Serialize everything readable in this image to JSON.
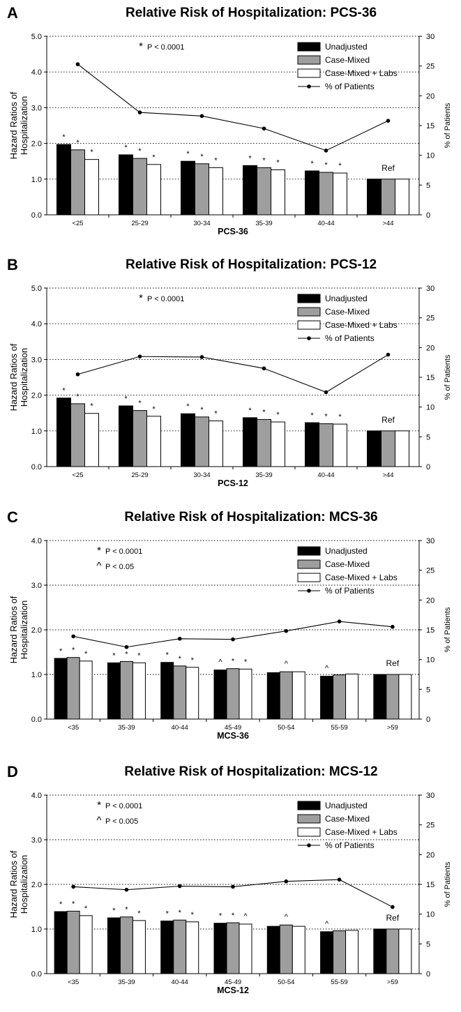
{
  "colors": {
    "unadjusted": "#000000",
    "case_mixed": "#9e9e9e",
    "case_mixed_labs": "#ffffff",
    "patients_line": "#000000"
  },
  "chart_data": [
    {
      "type": "bar",
      "panel_letter": "A",
      "title": "Relative Risk of Hospitalization: PCS-36",
      "xlabel": "PCS-36",
      "ylabel_lines": [
        "Hazard Ratios of",
        "Hospitalization"
      ],
      "y2label": "% of Patients",
      "ylim": [
        0,
        5
      ],
      "yticks": [
        "0.0",
        "1.0",
        "2.0",
        "3.0",
        "4.0",
        "5.0"
      ],
      "y2lim": [
        0,
        30
      ],
      "y2ticks": [
        "0",
        "5",
        "10",
        "15",
        "20",
        "25",
        "30"
      ],
      "grid": "dotted horizontal",
      "legend_position": "top-right",
      "categories": [
        "<25",
        "25-29",
        "30-34",
        "35-39",
        "40-44",
        ">44"
      ],
      "series": [
        {
          "name": "Unadjusted",
          "values": [
            1.97,
            1.68,
            1.5,
            1.38,
            1.23,
            1.0
          ]
        },
        {
          "name": "Case-Mixed",
          "values": [
            1.82,
            1.58,
            1.43,
            1.32,
            1.19,
            1.0
          ]
        },
        {
          "name": "Case-Mixed + Labs",
          "values": [
            1.55,
            1.41,
            1.32,
            1.26,
            1.17,
            1.0
          ]
        }
      ],
      "line_series": {
        "name": "% of Patients",
        "values": [
          25.3,
          17.2,
          16.6,
          14.5,
          10.8,
          15.8
        ]
      },
      "significance": [
        [
          "*",
          "*",
          "*"
        ],
        [
          "*",
          "*",
          "*"
        ],
        [
          "*",
          "*",
          "*"
        ],
        [
          "*",
          "*",
          "*"
        ],
        [
          "*",
          "*",
          "*"
        ],
        [
          "",
          "",
          ""
        ]
      ],
      "ref_label": "Ref",
      "notes": [
        {
          "symbol": "*",
          "text": "P < 0.0001"
        }
      ]
    },
    {
      "type": "bar",
      "panel_letter": "B",
      "title": "Relative Risk of Hospitalization: PCS-12",
      "xlabel": "PCS-12",
      "ylabel_lines": [
        "Hazard Ratios of",
        "Hospitalization"
      ],
      "y2label": "% of Patients",
      "ylim": [
        0,
        5
      ],
      "yticks": [
        "0.0",
        "1.0",
        "2.0",
        "3.0",
        "4.0",
        "5.0"
      ],
      "y2lim": [
        0,
        30
      ],
      "y2ticks": [
        "0",
        "5",
        "10",
        "15",
        "20",
        "25",
        "30"
      ],
      "grid": "dotted horizontal",
      "legend_position": "top-right",
      "categories": [
        "<25",
        "25-29",
        "30-34",
        "35-39",
        "40-44",
        ">44"
      ],
      "series": [
        {
          "name": "Unadjusted",
          "values": [
            1.92,
            1.7,
            1.48,
            1.37,
            1.23,
            1.0
          ]
        },
        {
          "name": "Case-Mixed",
          "values": [
            1.76,
            1.57,
            1.39,
            1.32,
            1.2,
            1.0
          ]
        },
        {
          "name": "Case-Mixed + Labs",
          "values": [
            1.49,
            1.41,
            1.28,
            1.25,
            1.19,
            1.0
          ]
        }
      ],
      "line_series": {
        "name": "% of Patients",
        "values": [
          15.5,
          18.5,
          18.4,
          16.5,
          12.5,
          18.8
        ]
      },
      "significance": [
        [
          "*",
          "*",
          "*"
        ],
        [
          "*",
          "*",
          "*"
        ],
        [
          "*",
          "*",
          "*"
        ],
        [
          "*",
          "*",
          "*"
        ],
        [
          "*",
          "*",
          "*"
        ],
        [
          "",
          "",
          ""
        ]
      ],
      "ref_label": "Ref",
      "notes": [
        {
          "symbol": "*",
          "text": "P < 0.0001"
        }
      ]
    },
    {
      "type": "bar",
      "panel_letter": "C",
      "title": "Relative Risk of Hospitalization: MCS-36",
      "xlabel": "MCS-36",
      "ylabel_lines": [
        "Hazard Ratios of",
        "Hospitalization"
      ],
      "y2label": "% of Patients",
      "ylim": [
        0,
        4
      ],
      "yticks": [
        "0.0",
        "1.0",
        "2.0",
        "3.0",
        "4.0"
      ],
      "y2lim": [
        0,
        30
      ],
      "y2ticks": [
        "0",
        "5",
        "10",
        "15",
        "20",
        "25",
        "30"
      ],
      "grid": "dotted horizontal",
      "legend_position": "top-right",
      "categories": [
        "<35",
        "35-39",
        "40-44",
        "45-49",
        "50-54",
        "55-59",
        ">59"
      ],
      "series": [
        {
          "name": "Unadjusted",
          "values": [
            1.36,
            1.26,
            1.27,
            1.1,
            1.04,
            0.96,
            1.0
          ]
        },
        {
          "name": "Case-Mixed",
          "values": [
            1.38,
            1.29,
            1.19,
            1.13,
            1.06,
            0.99,
            1.0
          ]
        },
        {
          "name": "Case-Mixed + Labs",
          "values": [
            1.3,
            1.26,
            1.16,
            1.12,
            1.06,
            1.01,
            1.0
          ]
        }
      ],
      "line_series": {
        "name": "% of Patients",
        "values": [
          13.9,
          12.1,
          13.5,
          13.4,
          14.8,
          16.4,
          15.5
        ]
      },
      "significance": [
        [
          "*",
          "*",
          "*"
        ],
        [
          "*",
          "*",
          "*"
        ],
        [
          "*",
          "*",
          "*"
        ],
        [
          "^",
          "*",
          "*"
        ],
        [
          "",
          "^",
          ""
        ],
        [
          "^",
          "",
          ""
        ],
        [
          "",
          "",
          ""
        ]
      ],
      "ref_label": "Ref",
      "notes": [
        {
          "symbol": "*",
          "text": "P < 0.0001"
        },
        {
          "symbol": "^",
          "text": "P < 0.05"
        }
      ]
    },
    {
      "type": "bar",
      "panel_letter": "D",
      "title": "Relative Risk of Hospitalization: MCS-12",
      "xlabel": "MCS-12",
      "ylabel_lines": [
        "Hazard Ratios of",
        "Hospitalization"
      ],
      "y2label": "% of Patients",
      "ylim": [
        0,
        4
      ],
      "yticks": [
        "0.0",
        "1.0",
        "2.0",
        "3.0",
        "4.0"
      ],
      "y2lim": [
        0,
        30
      ],
      "y2ticks": [
        "0",
        "5",
        "10",
        "15",
        "20",
        "25",
        "30"
      ],
      "grid": "dotted horizontal",
      "legend_position": "top-right",
      "categories": [
        "<35",
        "35-39",
        "40-44",
        "45-49",
        "50-54",
        "55-59",
        ">59"
      ],
      "series": [
        {
          "name": "Unadjusted",
          "values": [
            1.39,
            1.25,
            1.18,
            1.13,
            1.06,
            0.94,
            1.0
          ]
        },
        {
          "name": "Case-Mixed",
          "values": [
            1.4,
            1.27,
            1.2,
            1.14,
            1.09,
            0.96,
            1.0
          ]
        },
        {
          "name": "Case-Mixed + Labs",
          "values": [
            1.3,
            1.19,
            1.16,
            1.11,
            1.06,
            0.97,
            1.0
          ]
        }
      ],
      "line_series": {
        "name": "% of Patients",
        "values": [
          14.6,
          14.1,
          14.7,
          14.6,
          15.5,
          15.8,
          11.2
        ]
      },
      "significance": [
        [
          "*",
          "*",
          "*"
        ],
        [
          "*",
          "*",
          "*"
        ],
        [
          "*",
          "*",
          "*"
        ],
        [
          "*",
          "*",
          "^"
        ],
        [
          "",
          "^",
          ""
        ],
        [
          "^",
          "",
          ""
        ],
        [
          "",
          "",
          ""
        ]
      ],
      "ref_label": "Ref",
      "notes": [
        {
          "symbol": "*",
          "text": "P < 0.0001"
        },
        {
          "symbol": "^",
          "text": "P < 0.005"
        }
      ]
    }
  ]
}
